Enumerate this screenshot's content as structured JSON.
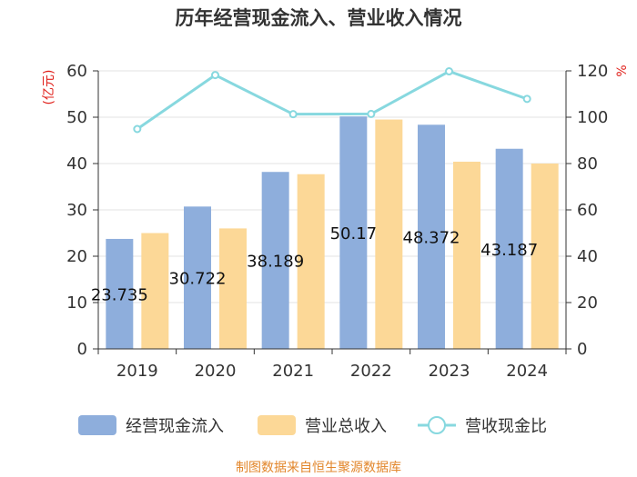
{
  "title": "历年经营现金流入、营业收入情况",
  "source": "制图数据来自恒生聚源数据库",
  "chart_data": {
    "type": "bar",
    "categories": [
      "2019",
      "2020",
      "2021",
      "2022",
      "2023",
      "2024"
    ],
    "series": [
      {
        "name": "经营现金流入",
        "kind": "bar",
        "axis": "left",
        "color": "#8eaedc",
        "values": [
          23.735,
          30.722,
          38.189,
          50.17,
          48.372,
          43.187
        ],
        "labels": [
          "23.735",
          "30.722",
          "38.189",
          "50.17",
          "48.372",
          "43.187"
        ]
      },
      {
        "name": "营业总收入",
        "kind": "bar",
        "axis": "left",
        "color": "#fcd897",
        "values": [
          25.0,
          26.0,
          37.7,
          49.5,
          40.4,
          40.0
        ]
      },
      {
        "name": "营收现金比",
        "kind": "line",
        "axis": "right",
        "color": "#87d8df",
        "values": [
          94.9,
          118.2,
          101.3,
          101.4,
          119.8,
          107.9
        ]
      }
    ],
    "y_left": {
      "unit": "(亿元)",
      "ylim": [
        0,
        60
      ],
      "ticks": [
        "0",
        "10",
        "20",
        "30",
        "40",
        "50",
        "60"
      ]
    },
    "y_right": {
      "unit": "%",
      "ylim": [
        0,
        120
      ],
      "ticks": [
        "0",
        "20",
        "40",
        "60",
        "80",
        "100",
        "120"
      ]
    },
    "legend": "bottom",
    "grid": true
  }
}
